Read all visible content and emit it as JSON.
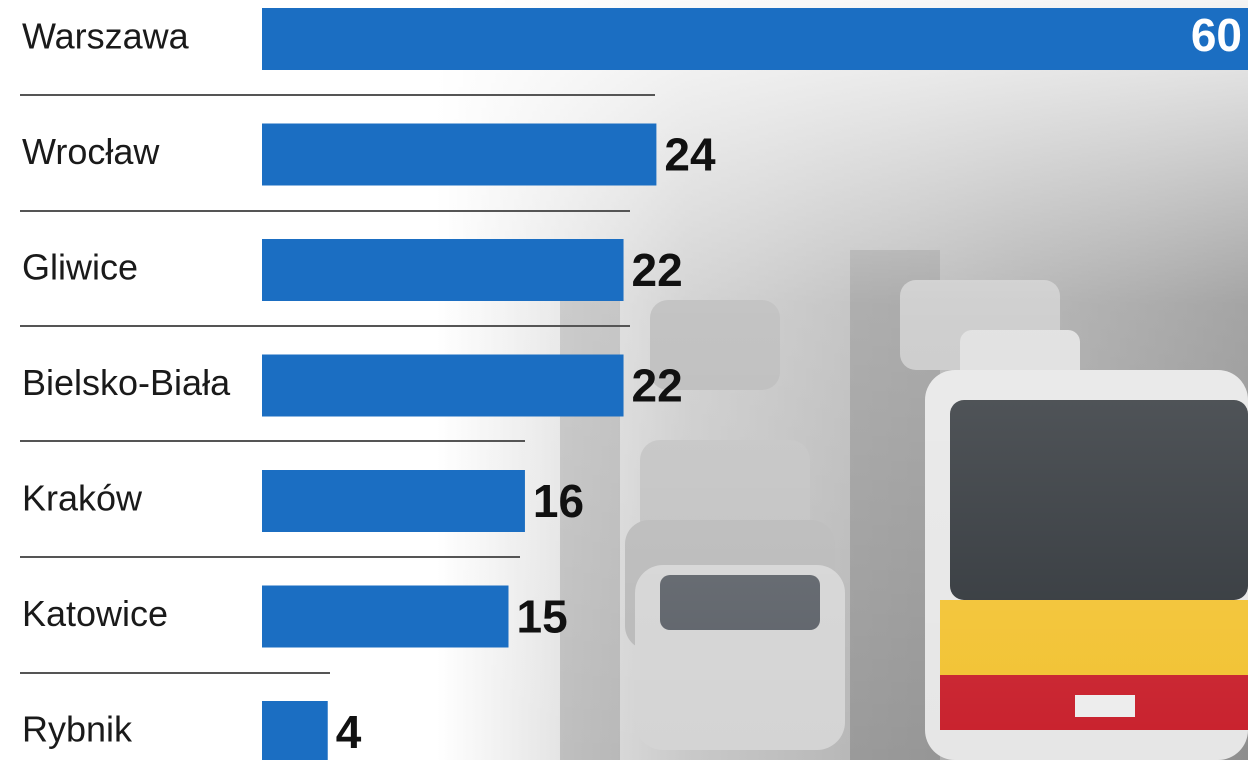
{
  "chart_data": {
    "type": "bar",
    "orientation": "horizontal",
    "categories": [
      "Warszawa",
      "Wrocław",
      "Gliwice",
      "Bielsko-Biała",
      "Kraków",
      "Katowice",
      "Rybnik"
    ],
    "values": [
      60,
      24,
      22,
      22,
      16,
      15,
      4
    ],
    "color": "#1b6ec2"
  }
}
